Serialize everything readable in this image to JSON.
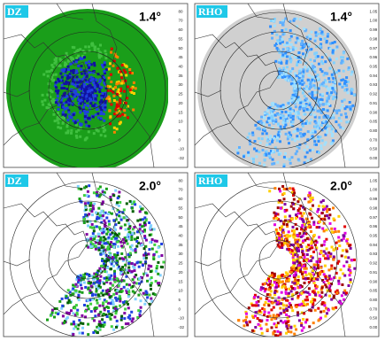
{
  "panels": [
    {
      "label": "DZ",
      "elevation": "1.4°",
      "colorbar": {
        "labels": [
          "80",
          "70",
          "60",
          "55",
          "50",
          "45",
          "40",
          "35",
          "30",
          "25",
          "20",
          "15",
          "10",
          "5",
          "0",
          "-10",
          "-32"
        ],
        "colors": [
          "#000000",
          "#9a9a9a",
          "#e000e0",
          "#8000a0",
          "#e00000",
          "#a00000",
          "#ff8000",
          "#ffd000",
          "#d0c000",
          "#006000",
          "#00a000",
          "#40e040",
          "#000090",
          "#0040ff",
          "#40a0ff",
          "#80e0ff",
          "#ffffff"
        ]
      }
    },
    {
      "label": "RHO",
      "elevation": "1.4°",
      "colorbar": {
        "labels": [
          "1.05",
          "1.00",
          "0.99",
          "0.98",
          "0.97",
          "0.96",
          "0.95",
          "0.94",
          "0.93",
          "0.92",
          "0.91",
          "0.90",
          "0.85",
          "0.80",
          "0.70",
          "0.50",
          "0.00"
        ],
        "colors": [
          "#000000",
          "#9a9a9a",
          "#e000e0",
          "#8000a0",
          "#e00000",
          "#a00000",
          "#ff8000",
          "#ffd000",
          "#d0c000",
          "#006000",
          "#00a000",
          "#40e040",
          "#000090",
          "#0040ff",
          "#40a0ff",
          "#80e0ff",
          "#ffffff"
        ]
      }
    },
    {
      "label": "DZ",
      "elevation": "2.0°",
      "colorbar": {
        "labels": [
          "80",
          "70",
          "60",
          "55",
          "50",
          "45",
          "40",
          "35",
          "30",
          "25",
          "20",
          "15",
          "10",
          "5",
          "0",
          "-10",
          "-32"
        ],
        "colors": [
          "#000000",
          "#9a9a9a",
          "#e000e0",
          "#8000a0",
          "#e00000",
          "#a00000",
          "#ff8000",
          "#ffd000",
          "#d0c000",
          "#006000",
          "#00a000",
          "#40e040",
          "#000090",
          "#0040ff",
          "#40a0ff",
          "#80e0ff",
          "#ffffff"
        ]
      }
    },
    {
      "label": "RHO",
      "elevation": "2.0°",
      "colorbar": {
        "labels": [
          "1.05",
          "1.00",
          "0.99",
          "0.98",
          "0.97",
          "0.96",
          "0.95",
          "0.94",
          "0.93",
          "0.92",
          "0.91",
          "0.90",
          "0.85",
          "0.80",
          "0.70",
          "0.50",
          "0.00"
        ],
        "colors": [
          "#000000",
          "#9a9a9a",
          "#e000e0",
          "#8000a0",
          "#e00000",
          "#a00000",
          "#ff8000",
          "#ffd000",
          "#d0c000",
          "#006000",
          "#00a000",
          "#40e040",
          "#000090",
          "#0040ff",
          "#40a0ff",
          "#80e0ff",
          "#ffffff"
        ]
      }
    }
  ]
}
